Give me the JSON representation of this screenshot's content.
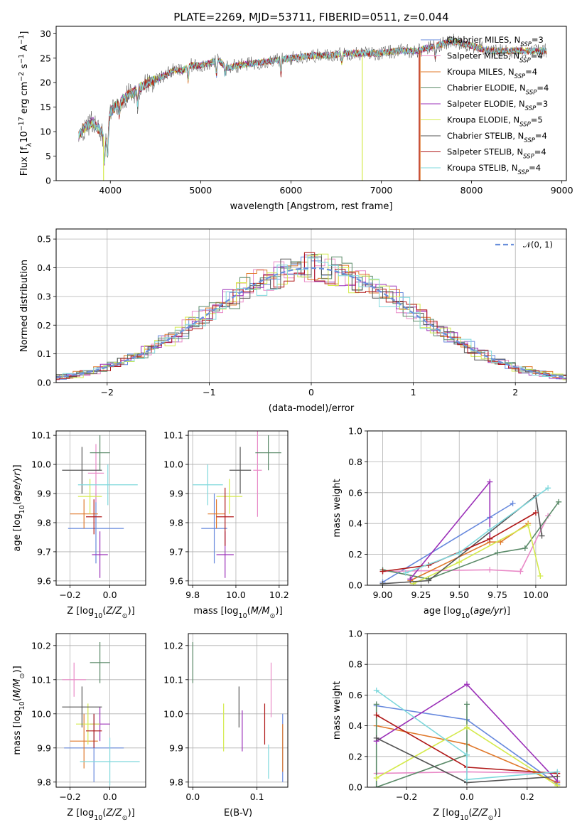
{
  "figure_title": "PLATE=2269, MJD=53711, FIBERID=0511, z=0.044",
  "colors": {
    "Chabrier MILES": "#6688dd",
    "Salpeter MILES": "#e98ac7",
    "Kroupa MILES": "#e0782a",
    "Chabrier ELODIE": "#5a8a68",
    "Salpeter ELODIE": "#9b30b8",
    "Kroupa ELODIE": "#d4ea4c",
    "Chabrier STELIB": "#555555",
    "Salpeter STELIB": "#b01818",
    "Kroupa STELIB": "#7fd8dc"
  },
  "legend_main": [
    {
      "name": "Chabrier MILES",
      "nssp": "3"
    },
    {
      "name": "Salpeter MILES",
      "nssp": "4"
    },
    {
      "name": "Kroupa MILES",
      "nssp": "4"
    },
    {
      "name": "Chabrier ELODIE",
      "nssp": "4"
    },
    {
      "name": "Salpeter ELODIE",
      "nssp": "3"
    },
    {
      "name": "Kroupa ELODIE",
      "nssp": "5"
    },
    {
      "name": "Chabrier STELIB",
      "nssp": "4"
    },
    {
      "name": "Salpeter STELIB",
      "nssp": "4"
    },
    {
      "name": "Kroupa STELIB",
      "nssp": "4"
    }
  ],
  "legend_norm": "𝒩(0, 1)",
  "chart_data": [
    {
      "id": "spectrum",
      "type": "line",
      "xlabel": "wavelength [Angstrom, rest frame]",
      "ylabel": "Flux [f_λ10^-17 erg cm^-2 s^-1 A^-1]",
      "xlim": [
        3400,
        9050
      ],
      "ylim": [
        0,
        31.5
      ],
      "xticks": [
        4000,
        5000,
        6000,
        7000,
        8000,
        9000
      ],
      "yticks": [
        0,
        5,
        10,
        15,
        20,
        25,
        30
      ],
      "grid": false,
      "continuum": {
        "x": [
          3650,
          3700,
          3800,
          3900,
          3950,
          4000,
          4100,
          4200,
          4300,
          4400,
          4500,
          4600,
          4700,
          4800,
          4900,
          5000,
          5100,
          5200,
          5300,
          5400,
          5600,
          5800,
          6000,
          6200,
          6400,
          6600,
          6800,
          7000,
          7200,
          7400,
          7600,
          7800,
          8000,
          8200,
          8400,
          8600,
          8800
        ],
        "y": [
          9,
          10.5,
          12,
          10,
          8,
          14,
          16,
          17.5,
          18.5,
          20,
          20.5,
          21.5,
          22.5,
          22.5,
          23.5,
          23.5,
          24,
          24.5,
          23,
          23.5,
          24,
          24.5,
          25,
          25.5,
          25.5,
          26,
          26,
          26,
          26.5,
          26.5,
          27.5,
          28.5,
          27.5,
          26.5,
          26.5,
          26.5,
          26.5
        ]
      },
      "drops": [
        {
          "model": "Kroupa ELODIE",
          "x": 3925,
          "ymin": 0
        },
        {
          "model": "Kroupa ELODIE",
          "x": 6790,
          "ymin": 0
        },
        {
          "model": "Salpeter STELIB",
          "x": 7420,
          "ymin": 0
        },
        {
          "model": "Kroupa MILES",
          "x": 7430,
          "ymin": 0
        }
      ]
    },
    {
      "id": "residuals",
      "type": "histogram",
      "xlabel": "(data-model)/error",
      "ylabel": "Normed distribution",
      "xlim": [
        -2.5,
        2.5
      ],
      "ylim": [
        0,
        0.535
      ],
      "xticks": [
        -2,
        -1,
        0,
        1,
        2
      ],
      "yticks": [
        0.0,
        0.1,
        0.2,
        0.3,
        0.4,
        0.5
      ],
      "grid": true,
      "bin_width": 0.1,
      "legend_placement": "top-right"
    },
    {
      "id": "z-age",
      "type": "scatter",
      "xlabel": "Z [log10(Z/Z⊙)]",
      "ylabel": "age  [log10(age/yr)]",
      "xlim": [
        -0.27,
        0.18
      ],
      "ylim": [
        9.585,
        10.115
      ],
      "xticks": [
        -0.2,
        0.0
      ],
      "yticks": [
        9.6,
        9.7,
        9.8,
        9.9,
        10.0,
        10.1
      ],
      "grid": true,
      "points": [
        {
          "model": "Chabrier MILES",
          "x": -0.07,
          "xerr": 0.14,
          "y": 9.78,
          "yerr": 0.12
        },
        {
          "model": "Salpeter MILES",
          "x": -0.07,
          "xerr": 0.04,
          "y": 9.97,
          "yerr": 0.1
        },
        {
          "model": "Kroupa MILES",
          "x": -0.13,
          "xerr": 0.07,
          "y": 9.83,
          "yerr": 0.05
        },
        {
          "model": "Chabrier ELODIE",
          "x": -0.05,
          "xerr": 0.05,
          "y": 10.04,
          "yerr": 0.06
        },
        {
          "model": "Salpeter ELODIE",
          "x": -0.05,
          "xerr": 0.04,
          "y": 9.69,
          "yerr": 0.08
        },
        {
          "model": "Kroupa ELODIE",
          "x": -0.1,
          "xerr": 0.06,
          "y": 9.89,
          "yerr": 0.06
        },
        {
          "model": "Chabrier STELIB",
          "x": -0.14,
          "xerr": 0.1,
          "y": 9.98,
          "yerr": 0.08
        },
        {
          "model": "Salpeter STELIB",
          "x": -0.08,
          "xerr": 0.04,
          "y": 9.82,
          "yerr": 0.06
        },
        {
          "model": "Kroupa STELIB",
          "x": -0.01,
          "xerr": 0.15,
          "y": 9.93,
          "yerr": 0.07
        }
      ]
    },
    {
      "id": "mass-age",
      "type": "scatter",
      "xlabel": "mass [log10(M/M⊙)]",
      "ylabel": "",
      "xlim": [
        9.78,
        10.24
      ],
      "ylim": [
        9.585,
        10.115
      ],
      "xticks": [
        9.8,
        10.0,
        10.2
      ],
      "yticks": [
        9.6,
        9.7,
        9.8,
        9.9,
        10.0,
        10.1
      ],
      "grid": true,
      "points": [
        {
          "model": "Chabrier MILES",
          "x": 9.9,
          "xerr": 0.06,
          "y": 9.78,
          "yerr": 0.12
        },
        {
          "model": "Salpeter MILES",
          "x": 10.1,
          "xerr": 0.02,
          "y": 9.98,
          "yerr": 0.16
        },
        {
          "model": "Kroupa MILES",
          "x": 9.91,
          "xerr": 0.04,
          "y": 9.83,
          "yerr": 0.05
        },
        {
          "model": "Chabrier ELODIE",
          "x": 10.15,
          "xerr": 0.06,
          "y": 10.04,
          "yerr": 0.06
        },
        {
          "model": "Salpeter ELODIE",
          "x": 9.95,
          "xerr": 0.04,
          "y": 9.69,
          "yerr": 0.08
        },
        {
          "model": "Kroupa ELODIE",
          "x": 9.97,
          "xerr": 0.06,
          "y": 9.89,
          "yerr": 0.06
        },
        {
          "model": "Chabrier STELIB",
          "x": 10.02,
          "xerr": 0.05,
          "y": 9.98,
          "yerr": 0.08
        },
        {
          "model": "Salpeter STELIB",
          "x": 9.95,
          "xerr": 0.04,
          "y": 9.82,
          "yerr": 0.1
        },
        {
          "model": "Kroupa STELIB",
          "x": 9.87,
          "xerr": 0.07,
          "y": 9.93,
          "yerr": 0.07
        }
      ]
    },
    {
      "id": "age-weight",
      "type": "line",
      "xlabel": "age  [log10(age/yr)]",
      "ylabel": "mass weight",
      "xlim": [
        8.9,
        10.2
      ],
      "ylim": [
        0,
        1.0
      ],
      "xticks": [
        9.0,
        9.25,
        9.5,
        9.75,
        10.0
      ],
      "xtick_labels": [
        "9.00",
        "9.25",
        "9.50",
        "9.75",
        "10.00"
      ],
      "yticks": [
        0.0,
        0.2,
        0.4,
        0.6,
        0.8,
        1.0
      ],
      "grid": true,
      "series": [
        {
          "model": "Chabrier MILES",
          "x": [
            9.0,
            9.7,
            9.85
          ],
          "y": [
            0.02,
            0.44,
            0.53
          ]
        },
        {
          "model": "Salpeter MILES",
          "x": [
            9.0,
            9.7,
            9.9,
            10.08
          ],
          "y": [
            0.09,
            0.1,
            0.09,
            0.45
          ]
        },
        {
          "model": "Kroupa MILES",
          "x": [
            9.18,
            9.7,
            9.77,
            9.95
          ],
          "y": [
            0.03,
            0.28,
            0.28,
            0.4
          ]
        },
        {
          "model": "Chabrier ELODIE",
          "x": [
            9.0,
            9.3,
            9.75,
            9.93,
            10.15
          ],
          "y": [
            0.1,
            0.04,
            0.21,
            0.24,
            0.54
          ]
        },
        {
          "model": "Salpeter ELODIE",
          "x": [
            9.18,
            9.7,
            9.7
          ],
          "y": [
            0.04,
            0.67,
            0.3
          ]
        },
        {
          "model": "Kroupa ELODIE",
          "x": [
            9.2,
            9.5,
            9.95,
            10.03
          ],
          "y": [
            0.01,
            0.15,
            0.39,
            0.06
          ]
        },
        {
          "model": "Chabrier STELIB",
          "x": [
            9.0,
            9.3,
            10.0,
            10.04
          ],
          "y": [
            0.01,
            0.03,
            0.58,
            0.32
          ]
        },
        {
          "model": "Salpeter STELIB",
          "x": [
            9.0,
            9.3,
            9.7,
            10.0
          ],
          "y": [
            0.09,
            0.13,
            0.3,
            0.47
          ]
        },
        {
          "model": "Kroupa STELIB",
          "x": [
            9.15,
            9.5,
            9.7,
            10.08
          ],
          "y": [
            0.08,
            0.21,
            0.36,
            0.63
          ]
        }
      ]
    },
    {
      "id": "z-mass",
      "type": "scatter",
      "xlabel": "Z [log10(Z/Z⊙)]",
      "ylabel": "mass [log10(M/M⊙)]",
      "xlim": [
        -0.27,
        0.18
      ],
      "ylim": [
        9.785,
        10.235
      ],
      "xticks": [
        -0.2,
        0.0
      ],
      "yticks": [
        9.8,
        9.9,
        10.0,
        10.1,
        10.2
      ],
      "grid": true,
      "points": [
        {
          "model": "Chabrier MILES",
          "x": -0.08,
          "xerr": 0.15,
          "y": 9.9,
          "yerr": 0.1
        },
        {
          "model": "Salpeter MILES",
          "x": -0.18,
          "xerr": 0.06,
          "y": 10.1,
          "yerr": 0.05
        },
        {
          "model": "Kroupa MILES",
          "x": -0.13,
          "xerr": 0.07,
          "y": 9.92,
          "yerr": 0.08
        },
        {
          "model": "Chabrier ELODIE",
          "x": -0.05,
          "xerr": 0.05,
          "y": 10.15,
          "yerr": 0.06
        },
        {
          "model": "Salpeter ELODIE",
          "x": -0.05,
          "xerr": 0.05,
          "y": 9.97,
          "yerr": 0.05
        },
        {
          "model": "Kroupa ELODIE",
          "x": -0.11,
          "xerr": 0.06,
          "y": 9.97,
          "yerr": 0.06
        },
        {
          "model": "Chabrier STELIB",
          "x": -0.14,
          "xerr": 0.1,
          "y": 10.02,
          "yerr": 0.06
        },
        {
          "model": "Salpeter STELIB",
          "x": -0.08,
          "xerr": 0.04,
          "y": 9.95,
          "yerr": 0.05
        },
        {
          "model": "Kroupa STELIB",
          "x": 0.0,
          "xerr": 0.15,
          "y": 9.86,
          "yerr": 0.07
        }
      ]
    },
    {
      "id": "ebv-mass",
      "type": "scatter",
      "xlabel": "E(B-V)",
      "ylabel": "",
      "xlim": [
        -0.007,
        0.148
      ],
      "ylim": [
        9.785,
        10.235
      ],
      "xticks": [
        0.0,
        0.1
      ],
      "yticks": [
        9.8,
        9.9,
        10.0,
        10.1,
        10.2
      ],
      "grid": true,
      "points": [
        {
          "model": "Chabrier MILES",
          "x": 0.14,
          "y": 9.9,
          "yerr": 0.1
        },
        {
          "model": "Salpeter MILES",
          "x": 0.122,
          "y": 10.07,
          "yerr": 0.08
        },
        {
          "model": "Kroupa MILES",
          "x": 0.14,
          "y": 9.9,
          "yerr": 0.07
        },
        {
          "model": "Chabrier ELODIE",
          "x": 0.0,
          "y": 10.15,
          "yerr": 0.06
        },
        {
          "model": "Salpeter ELODIE",
          "x": 0.077,
          "y": 9.95,
          "yerr": 0.06
        },
        {
          "model": "Kroupa ELODIE",
          "x": 0.048,
          "y": 9.96,
          "yerr": 0.07
        },
        {
          "model": "Chabrier STELIB",
          "x": 0.072,
          "y": 10.02,
          "yerr": 0.06
        },
        {
          "model": "Salpeter STELIB",
          "x": 0.112,
          "y": 9.97,
          "yerr": 0.06
        },
        {
          "model": "Kroupa STELIB",
          "x": 0.118,
          "y": 9.86,
          "yerr": 0.05
        }
      ]
    },
    {
      "id": "z-weight",
      "type": "line",
      "xlabel": "Z [log10(Z/Z⊙)]",
      "ylabel": "mass weight",
      "xlim": [
        -0.33,
        0.33
      ],
      "ylim": [
        0,
        1.0
      ],
      "xticks": [
        -0.2,
        0.0,
        0.2
      ],
      "yticks": [
        0.0,
        0.2,
        0.4,
        0.6,
        0.8,
        1.0
      ],
      "grid": true,
      "series": [
        {
          "model": "Chabrier MILES",
          "x": [
            -0.3,
            0.0,
            0.3
          ],
          "y": [
            0.53,
            0.44,
            0.02
          ]
        },
        {
          "model": "Salpeter MILES",
          "x": [
            -0.3,
            0.0,
            0.3
          ],
          "y": [
            0.09,
            0.1,
            0.09
          ]
        },
        {
          "model": "Kroupa MILES",
          "x": [
            -0.3,
            0.0,
            0.3
          ],
          "y": [
            0.4,
            0.28,
            0.03
          ]
        },
        {
          "model": "Chabrier ELODIE",
          "x": [
            -0.3,
            -0.3,
            0.0,
            0.0
          ],
          "y": [
            0.54,
            0.0,
            0.21,
            0.54
          ]
        },
        {
          "model": "Salpeter ELODIE",
          "x": [
            -0.3,
            0.0,
            0.3
          ],
          "y": [
            0.3,
            0.67,
            0.04
          ]
        },
        {
          "model": "Kroupa ELODIE",
          "x": [
            -0.3,
            0.0,
            0.3
          ],
          "y": [
            0.06,
            0.39,
            0.01
          ]
        },
        {
          "model": "Chabrier STELIB",
          "x": [
            -0.3,
            0.0,
            0.3
          ],
          "y": [
            0.32,
            0.03,
            0.07
          ]
        },
        {
          "model": "Salpeter STELIB",
          "x": [
            -0.3,
            0.0,
            0.3
          ],
          "y": [
            0.47,
            0.13,
            0.09
          ]
        },
        {
          "model": "Kroupa STELIB",
          "x": [
            -0.3,
            0.0,
            0.0,
            0.3
          ],
          "y": [
            0.63,
            0.21,
            0.05,
            0.1
          ]
        }
      ]
    }
  ]
}
